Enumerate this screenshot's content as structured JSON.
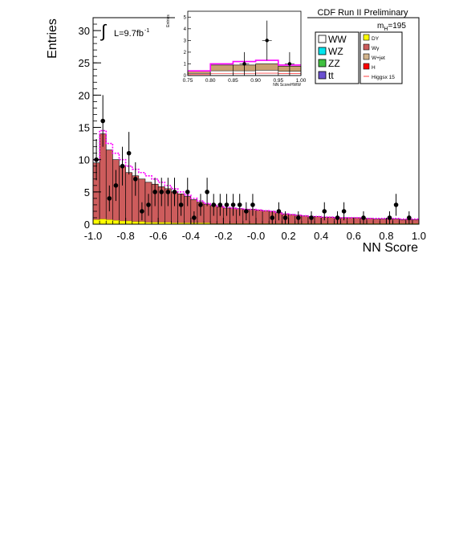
{
  "chart_data": {
    "type": "bar",
    "title": "CDF Run II Preliminary",
    "xlabel": "NN Score",
    "ylabel": "Entries",
    "xlim": [
      -1.0,
      1.0
    ],
    "ylim": [
      0,
      32
    ],
    "xticks": [
      -1.0,
      -0.8,
      -0.6,
      -0.4,
      -0.2,
      0.0,
      0.2,
      0.4,
      0.6,
      0.8,
      1.0
    ],
    "xtick_labels": [
      "-1.0",
      "-0.8",
      "-0.6",
      "-0.4",
      "-0.2",
      "-0.0",
      "0.2",
      "0.4",
      "0.6",
      "0.8",
      "1.0"
    ],
    "yticks": [
      0,
      5,
      10,
      15,
      20,
      25,
      30
    ],
    "ytick_labels": [
      "0",
      "5",
      "10",
      "15",
      "20",
      "25",
      "30"
    ],
    "lumi_label": "L=9.7fb",
    "lumi_exp": "-1",
    "mass_label": "m",
    "mass_sub": "H",
    "mass_value": "=195",
    "bin_edges_start": -1.0,
    "bin_width": 0.04,
    "stack_total": [
      9.5,
      14,
      11.5,
      10,
      9,
      8,
      7.5,
      7,
      6.5,
      6.2,
      5.8,
      5.5,
      5,
      4.7,
      4.3,
      3.8,
      3.4,
      3.1,
      2.9,
      2.7,
      2.5,
      2.5,
      2.4,
      2.3,
      2.3,
      2.2,
      2.1,
      2.0,
      1.8,
      1.6,
      1.5,
      1.4,
      1.3,
      1.2,
      1.2,
      1.1,
      1.1,
      1.0,
      1.0,
      1.0,
      1.0,
      0.9,
      0.9,
      0.8,
      0.8,
      0.8,
      0.8,
      0.7,
      0.7,
      0.7
    ],
    "dy_stack": [
      0.7,
      0.8,
      0.7,
      0.6,
      0.5,
      0.5,
      0.4,
      0.4,
      0.3,
      0.3,
      0.3,
      0.3,
      0.2,
      0.2,
      0.2,
      0.2,
      0.2,
      0.2,
      0.1,
      0.1,
      0.1,
      0.1,
      0.1,
      0.1,
      0.1,
      0.1,
      0.1,
      0.1,
      0.1,
      0.1,
      0.1,
      0.1,
      0.1,
      0.1,
      0.1,
      0.1,
      0.1,
      0.1,
      0.1,
      0.1,
      0.1,
      0.1,
      0.1,
      0.1,
      0.1,
      0.1,
      0.1,
      0.1,
      0.1,
      0.1
    ],
    "signal": [
      10,
      14.5,
      12.5,
      11,
      10,
      9,
      8.5,
      8,
      7.5,
      7,
      6.5,
      6,
      5.5,
      5,
      4.5,
      4,
      3.6,
      3.2,
      3,
      2.8,
      2.6,
      2.5,
      2.4,
      2.3,
      2.3,
      2.2,
      2.1,
      2.0,
      1.8,
      1.6,
      1.5,
      1.4,
      1.3,
      1.2,
      1.2,
      1.1,
      1.1,
      1.0,
      1.0,
      1.0,
      1.0,
      0.9,
      0.9,
      0.9,
      0.9,
      0.9,
      0.9,
      0.8,
      0.8,
      0.8
    ],
    "data_points": [
      {
        "x": -0.98,
        "y": 10,
        "err": 3.2
      },
      {
        "x": -0.94,
        "y": 16,
        "err": 4
      },
      {
        "x": -0.9,
        "y": 4,
        "err": 2
      },
      {
        "x": -0.86,
        "y": 6,
        "err": 2.4
      },
      {
        "x": -0.82,
        "y": 9,
        "err": 3
      },
      {
        "x": -0.78,
        "y": 11,
        "err": 3.3
      },
      {
        "x": -0.74,
        "y": 7,
        "err": 2.6
      },
      {
        "x": -0.7,
        "y": 2,
        "err": 1.4
      },
      {
        "x": -0.66,
        "y": 3,
        "err": 1.7
      },
      {
        "x": -0.62,
        "y": 5,
        "err": 2.2
      },
      {
        "x": -0.58,
        "y": 5,
        "err": 2.2
      },
      {
        "x": -0.54,
        "y": 5,
        "err": 2.2
      },
      {
        "x": -0.5,
        "y": 5,
        "err": 2.2
      },
      {
        "x": -0.46,
        "y": 3,
        "err": 1.7
      },
      {
        "x": -0.42,
        "y": 5,
        "err": 2.2
      },
      {
        "x": -0.38,
        "y": 1,
        "err": 1
      },
      {
        "x": -0.34,
        "y": 3,
        "err": 1.7
      },
      {
        "x": -0.3,
        "y": 5,
        "err": 2.2
      },
      {
        "x": -0.26,
        "y": 3,
        "err": 1.7
      },
      {
        "x": -0.22,
        "y": 3,
        "err": 1.7
      },
      {
        "x": -0.18,
        "y": 3,
        "err": 1.7
      },
      {
        "x": -0.14,
        "y": 3,
        "err": 1.7
      },
      {
        "x": -0.1,
        "y": 3,
        "err": 1.7
      },
      {
        "x": -0.06,
        "y": 2,
        "err": 1.4
      },
      {
        "x": -0.02,
        "y": 3,
        "err": 1.7
      },
      {
        "x": 0.1,
        "y": 1,
        "err": 1
      },
      {
        "x": 0.14,
        "y": 2,
        "err": 1.4
      },
      {
        "x": 0.18,
        "y": 1,
        "err": 1
      },
      {
        "x": 0.26,
        "y": 1,
        "err": 1
      },
      {
        "x": 0.34,
        "y": 1,
        "err": 1
      },
      {
        "x": 0.42,
        "y": 2,
        "err": 1.4
      },
      {
        "x": 0.5,
        "y": 1,
        "err": 1
      },
      {
        "x": 0.54,
        "y": 2,
        "err": 1.4
      },
      {
        "x": 0.66,
        "y": 1,
        "err": 1
      },
      {
        "x": 0.82,
        "y": 1,
        "err": 1
      },
      {
        "x": 0.86,
        "y": 3,
        "err": 1.7
      },
      {
        "x": 0.94,
        "y": 1,
        "err": 1
      }
    ],
    "legend": [
      {
        "label": "WW",
        "color": "#ffffff"
      },
      {
        "label": "WZ",
        "color": "#00e5ee"
      },
      {
        "label": "ZZ",
        "color": "#40c040"
      },
      {
        "label": "tt",
        "color": "#6a50d0"
      },
      {
        "label": "DY",
        "color": "#ffff00"
      },
      {
        "label": "Wγ",
        "color": "#cd5c5c"
      },
      {
        "label": "W+jet",
        "color": "#d2b48c"
      },
      {
        "label": "H",
        "color": "#ff0000"
      },
      {
        "label": "Higgsx 15",
        "color": "#ff4040"
      }
    ],
    "inset": {
      "xlabel": "NN ScoreHWW",
      "ylabel": "Entries",
      "xlim": [
        0.75,
        1.0
      ],
      "ylim": [
        0,
        5.5
      ],
      "xticks": [
        0.75,
        0.8,
        0.85,
        0.9,
        0.95,
        1.0
      ],
      "xtick_labels": [
        "0.75",
        "0.80",
        "0.85",
        "0.90",
        "0.95",
        "1.00"
      ],
      "yticks": [
        0,
        1,
        2,
        3,
        4,
        5
      ],
      "ytick_labels": [
        "0",
        "1",
        "2",
        "3",
        "4",
        "5"
      ],
      "bin_edges": [
        0.75,
        0.8,
        0.85,
        0.9,
        0.95,
        1.0
      ],
      "stack_total": [
        0.4,
        0.9,
        0.9,
        1.0,
        0.8
      ],
      "signal": [
        0.4,
        1.0,
        1.2,
        1.3,
        0.9
      ],
      "data_points": [
        {
          "x": 0.875,
          "y": 1,
          "err": 1
        },
        {
          "x": 0.925,
          "y": 3,
          "err": 1.7
        },
        {
          "x": 0.975,
          "y": 1,
          "err": 1
        }
      ]
    }
  }
}
